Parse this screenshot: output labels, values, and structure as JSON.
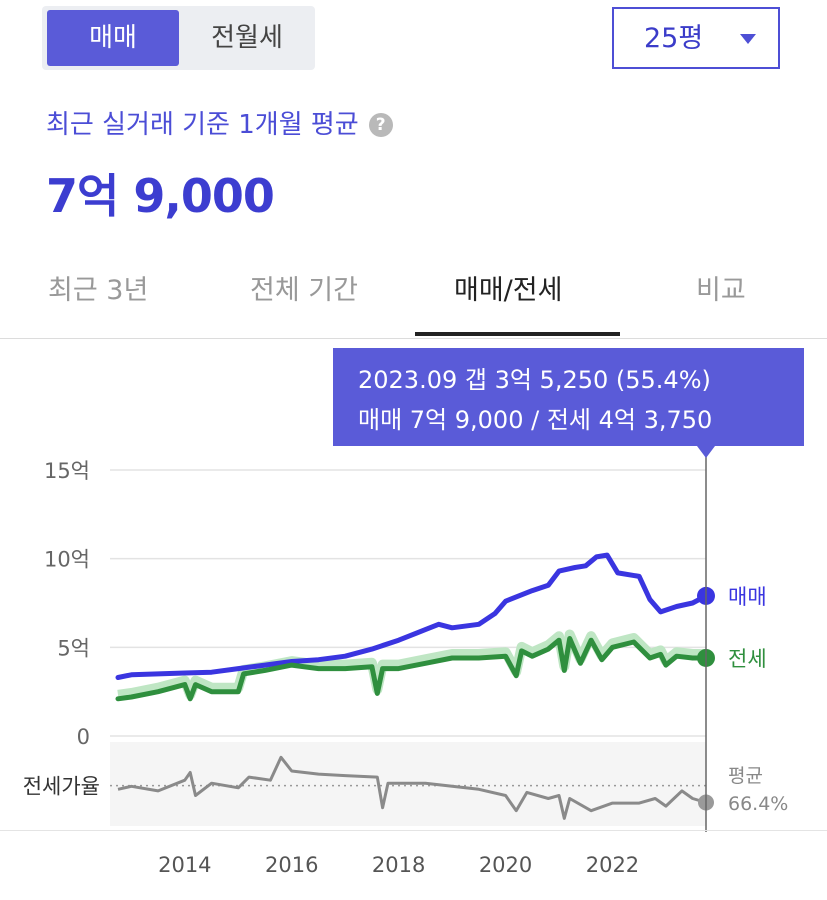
{
  "deal_toggle": {
    "options": [
      "매매",
      "전월세"
    ],
    "selected": "매매"
  },
  "area_select": {
    "value": "25평"
  },
  "caption": "최근 실거래 기준 1개월 평균",
  "help_icon": "?",
  "price": "7억 9,000",
  "tabs": [
    {
      "label": "최근 3년",
      "active": false
    },
    {
      "label": "전체 기간",
      "active": false
    },
    {
      "label": "매매/전세",
      "active": true
    },
    {
      "label": "비교",
      "active": false
    }
  ],
  "tooltip": {
    "line1": "2023.09  갭 3억 5,250 (55.4%)",
    "line2": "매매 7억 9,000 / 전세 4억 3,750"
  },
  "colors": {
    "accent": "#5a5bd8",
    "sale": "#3a35e0",
    "jeonse": "#2f8f3e",
    "jeonse_band": "#bfe6c4",
    "ratio": "#8a8a8a"
  },
  "chart_data": {
    "type": "line",
    "x_unit": "year",
    "xlim": [
      2012.6,
      2023.75
    ],
    "x_ticks": [
      2014,
      2016,
      2018,
      2020,
      2022
    ],
    "x_tick_labels": [
      "2014",
      "2016",
      "2018",
      "2020",
      "2022"
    ],
    "ylim": [
      0,
      15
    ],
    "y_ticks": [
      0,
      5,
      10,
      15
    ],
    "y_tick_labels": [
      "0",
      "5억",
      "10억",
      "15억"
    ],
    "grid": true,
    "series": [
      {
        "name": "매매",
        "key": "sale",
        "end_label": "매매",
        "points": [
          [
            2012.75,
            3.3
          ],
          [
            2013.0,
            3.45
          ],
          [
            2013.5,
            3.5
          ],
          [
            2014.0,
            3.55
          ],
          [
            2014.5,
            3.6
          ],
          [
            2015.0,
            3.8
          ],
          [
            2015.5,
            4.0
          ],
          [
            2016.0,
            4.2
          ],
          [
            2016.5,
            4.3
          ],
          [
            2017.0,
            4.5
          ],
          [
            2017.5,
            4.9
          ],
          [
            2018.0,
            5.4
          ],
          [
            2018.5,
            6.0
          ],
          [
            2018.75,
            6.3
          ],
          [
            2019.0,
            6.1
          ],
          [
            2019.5,
            6.3
          ],
          [
            2019.8,
            6.9
          ],
          [
            2020.0,
            7.6
          ],
          [
            2020.5,
            8.2
          ],
          [
            2020.8,
            8.5
          ],
          [
            2021.0,
            9.3
          ],
          [
            2021.3,
            9.5
          ],
          [
            2021.5,
            9.6
          ],
          [
            2021.7,
            10.1
          ],
          [
            2021.9,
            10.2
          ],
          [
            2022.1,
            9.2
          ],
          [
            2022.5,
            9.0
          ],
          [
            2022.7,
            7.7
          ],
          [
            2022.9,
            7.0
          ],
          [
            2023.2,
            7.3
          ],
          [
            2023.5,
            7.5
          ],
          [
            2023.75,
            7.9
          ]
        ]
      },
      {
        "name": "전세",
        "key": "jeonse",
        "end_label": "전세",
        "points": [
          [
            2012.75,
            2.1
          ],
          [
            2013.0,
            2.2
          ],
          [
            2013.5,
            2.5
          ],
          [
            2014.0,
            2.9
          ],
          [
            2014.1,
            2.1
          ],
          [
            2014.2,
            2.9
          ],
          [
            2014.5,
            2.5
          ],
          [
            2015.0,
            2.5
          ],
          [
            2015.1,
            3.5
          ],
          [
            2015.5,
            3.7
          ],
          [
            2016.0,
            4.0
          ],
          [
            2016.5,
            3.8
          ],
          [
            2017.0,
            3.8
          ],
          [
            2017.5,
            3.9
          ],
          [
            2017.6,
            2.4
          ],
          [
            2017.7,
            3.8
          ],
          [
            2018.0,
            3.8
          ],
          [
            2018.5,
            4.1
          ],
          [
            2019.0,
            4.4
          ],
          [
            2019.5,
            4.4
          ],
          [
            2020.0,
            4.5
          ],
          [
            2020.2,
            3.4
          ],
          [
            2020.3,
            4.8
          ],
          [
            2020.5,
            4.5
          ],
          [
            2020.8,
            4.9
          ],
          [
            2021.0,
            5.4
          ],
          [
            2021.1,
            3.7
          ],
          [
            2021.2,
            5.5
          ],
          [
            2021.4,
            4.1
          ],
          [
            2021.6,
            5.4
          ],
          [
            2021.8,
            4.3
          ],
          [
            2022.0,
            5.0
          ],
          [
            2022.4,
            5.3
          ],
          [
            2022.7,
            4.4
          ],
          [
            2022.9,
            4.6
          ],
          [
            2023.0,
            4.0
          ],
          [
            2023.2,
            4.5
          ],
          [
            2023.5,
            4.4
          ],
          [
            2023.75,
            4.4
          ]
        ]
      }
    ],
    "ratio_panel": {
      "name": "전세가율",
      "avg_label": "평균",
      "avg_value": "66.4%",
      "avg": 66.4,
      "ylim": [
        40,
        95
      ],
      "points": [
        [
          2012.75,
          64.0
        ],
        [
          2013.0,
          66.0
        ],
        [
          2013.5,
          63.0
        ],
        [
          2014.0,
          70.0
        ],
        [
          2014.1,
          75.0
        ],
        [
          2014.2,
          60.0
        ],
        [
          2014.5,
          68.0
        ],
        [
          2015.0,
          65.0
        ],
        [
          2015.2,
          72.0
        ],
        [
          2015.6,
          70.0
        ],
        [
          2015.8,
          85.0
        ],
        [
          2016.0,
          76.0
        ],
        [
          2016.5,
          74.0
        ],
        [
          2017.0,
          73.0
        ],
        [
          2017.6,
          72.0
        ],
        [
          2017.7,
          52.0
        ],
        [
          2017.8,
          68.0
        ],
        [
          2018.5,
          68.0
        ],
        [
          2019.0,
          66.0
        ],
        [
          2019.5,
          64.0
        ],
        [
          2020.0,
          60.0
        ],
        [
          2020.2,
          50.0
        ],
        [
          2020.4,
          62.0
        ],
        [
          2020.8,
          58.0
        ],
        [
          2021.0,
          60.0
        ],
        [
          2021.1,
          45.0
        ],
        [
          2021.2,
          58.0
        ],
        [
          2021.6,
          50.0
        ],
        [
          2022.0,
          55.0
        ],
        [
          2022.5,
          55.0
        ],
        [
          2022.8,
          58.0
        ],
        [
          2023.0,
          53.0
        ],
        [
          2023.3,
          63.0
        ],
        [
          2023.5,
          58.0
        ],
        [
          2023.75,
          55.4
        ]
      ]
    },
    "cursor_x": 2023.75
  }
}
